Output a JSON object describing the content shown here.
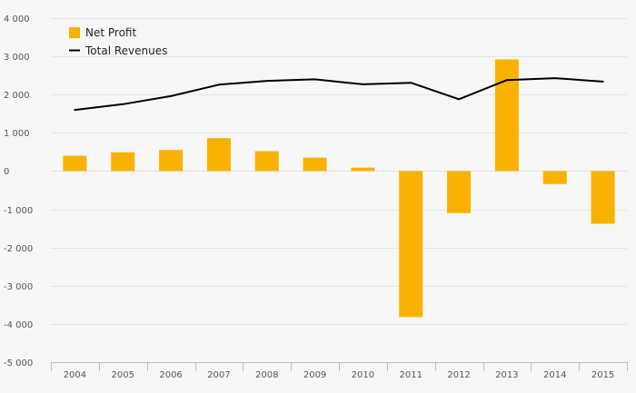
{
  "chart_data": {
    "type": "bar",
    "title": "",
    "xlabel": "",
    "ylabel": "",
    "ylim": [
      -5000,
      4000
    ],
    "yticks": [
      4000,
      3000,
      2000,
      1000,
      0,
      -1000,
      -2000,
      -3000,
      -4000,
      -5000
    ],
    "ytick_labels": [
      "4 000",
      "3 000",
      "2 000",
      "1 000",
      "0",
      "-1 000",
      "-2 000",
      "-3 000",
      "-4 000",
      "-5 000"
    ],
    "categories": [
      "2004",
      "2005",
      "2006",
      "2007",
      "2008",
      "2009",
      "2010",
      "2011",
      "2012",
      "2013",
      "2014",
      "2015"
    ],
    "grid": true,
    "legend_position": "top-left",
    "series": [
      {
        "name": "Net Profit",
        "type": "bar",
        "color": "#f9b100",
        "values": [
          400,
          490,
          550,
          860,
          520,
          350,
          90,
          -3820,
          -1100,
          2920,
          -340,
          -1380
        ]
      },
      {
        "name": "Total Revenues",
        "type": "line",
        "color": "#000000",
        "values": [
          1600,
          1750,
          1960,
          2260,
          2360,
          2400,
          2270,
          2310,
          1880,
          2380,
          2430,
          2340
        ]
      }
    ]
  }
}
